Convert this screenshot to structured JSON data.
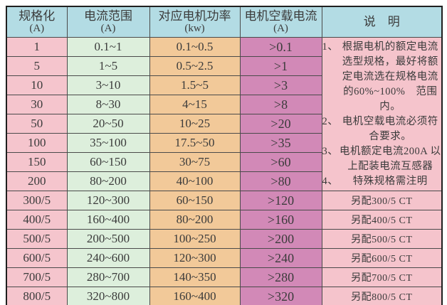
{
  "page": {
    "background": "#ffffff"
  },
  "colors": {
    "header": "#b3dce4",
    "spec": "#f5c5cd",
    "range": "#ddefdc",
    "power": "#f2c999",
    "noload": "#d289b7",
    "notes": "#f5c4cc",
    "border": "#4a4a4a",
    "outer_border": "#1f1f1f",
    "text": "#3b3b3b"
  },
  "table": {
    "columns": [
      {
        "title": "规格化",
        "unit": "(A)"
      },
      {
        "title": "电流范围",
        "unit": "(A)"
      },
      {
        "title": "对应电机功率",
        "unit": "(kw)"
      },
      {
        "title": "电机空载电流",
        "unit": "(A)"
      },
      {
        "title": "说　明",
        "unit": ""
      }
    ],
    "notes_rowspan": 8,
    "rows": [
      {
        "spec": "1",
        "range": "0.1~1",
        "power": "0.1~0.5",
        "noload": ">0.1"
      },
      {
        "spec": "5",
        "range": "1~5",
        "power": "0.5~2.5",
        "noload": ">1"
      },
      {
        "spec": "10",
        "range": "3~10",
        "power": "1.5~5",
        "noload": ">3"
      },
      {
        "spec": "30",
        "range": "8~30",
        "power": "4~15",
        "noload": ">8"
      },
      {
        "spec": "50",
        "range": "20~50",
        "power": "10~25",
        "noload": ">20"
      },
      {
        "spec": "100",
        "range": "35~100",
        "power": "17.5~50",
        "noload": ">35"
      },
      {
        "spec": "150",
        "range": "60~150",
        "power": "30~75",
        "noload": ">60"
      },
      {
        "spec": "200",
        "range": "80~200",
        "power": "40~100",
        "noload": ">80"
      },
      {
        "spec": "300/5",
        "range": "120~300",
        "power": "60~150",
        "noload": ">120",
        "ct": "另配300/5 CT"
      },
      {
        "spec": "400/5",
        "range": "160~400",
        "power": "80~200",
        "noload": ">160",
        "ct": "另配400/5 CT"
      },
      {
        "spec": "500/5",
        "range": "200~500",
        "power": "100~250",
        "noload": ">200",
        "ct": "另配500/5 CT"
      },
      {
        "spec": "600/5",
        "range": "240~600",
        "power": "120~300",
        "noload": ">240",
        "ct": "另配600/5 CT"
      },
      {
        "spec": "700/5",
        "range": "280~700",
        "power": "140~350",
        "noload": ">280",
        "ct": "另配700/5 CT"
      },
      {
        "spec": "800/5",
        "range": "320~800",
        "power": "160~400",
        "noload": ">320",
        "ct": "另配800/5 CT"
      }
    ]
  },
  "notes": {
    "items": [
      {
        "num": "1、",
        "text": "根据电机的额定电流选型规格，最好将额定电流选在规格电流的60%~100%　范围内。"
      },
      {
        "num": "2、",
        "text": "电机空载电流必须符合要求。"
      },
      {
        "num": "3、",
        "text": "电机额定电流200A 以上配装电流互感器"
      },
      {
        "num": "4、",
        "text": "特殊规格需注明"
      }
    ]
  }
}
